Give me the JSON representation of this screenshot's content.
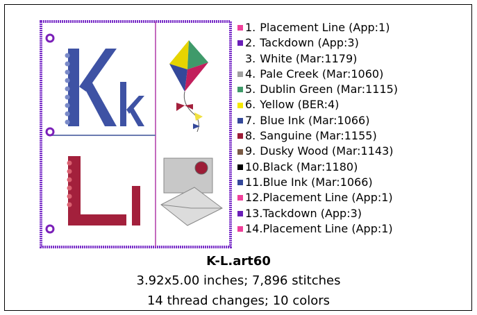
{
  "design": {
    "threads": [
      {
        "number": "1.",
        "name": "Placement Line (App:1)",
        "color": "#f0409a"
      },
      {
        "number": "2.",
        "name": "Tackdown (App:3)",
        "color": "#6a1fb8"
      },
      {
        "number": "3.",
        "name": "White (Mar:1179)",
        "color": "#ffffff"
      },
      {
        "number": "4.",
        "name": "Pale Creek (Mar:1060)",
        "color": "#a0a0a0"
      },
      {
        "number": "5.",
        "name": "Dublin Green (Mar:1115)",
        "color": "#3f9a6a"
      },
      {
        "number": "6.",
        "name": "Yellow (BER:4)",
        "color": "#f5e800"
      },
      {
        "number": "7.",
        "name": "Blue Ink (Mar:1066)",
        "color": "#34489a"
      },
      {
        "number": "8.",
        "name": "Sanguine (Mar:1155)",
        "color": "#9c1c36"
      },
      {
        "number": "9.",
        "name": "Dusky Wood (Mar:1143)",
        "color": "#7a5a44"
      },
      {
        "number": "10.",
        "name": "Black (Mar:1180)",
        "color": "#000000"
      },
      {
        "number": "11.",
        "name": "Blue Ink (Mar:1066)",
        "color": "#34489a"
      },
      {
        "number": "12.",
        "name": "Placement Line (App:1)",
        "color": "#f0409a"
      },
      {
        "number": "13.",
        "name": "Tackdown (App:3)",
        "color": "#6a1fb8"
      },
      {
        "number": "14.",
        "name": "Placement Line (App:1)",
        "color": "#f0409a"
      }
    ],
    "file_name": "K-L.art60",
    "size_line": "3.92x5.00 inches; 7,896 stitches",
    "changes_line": "14 thread changes; 10 colors"
  }
}
